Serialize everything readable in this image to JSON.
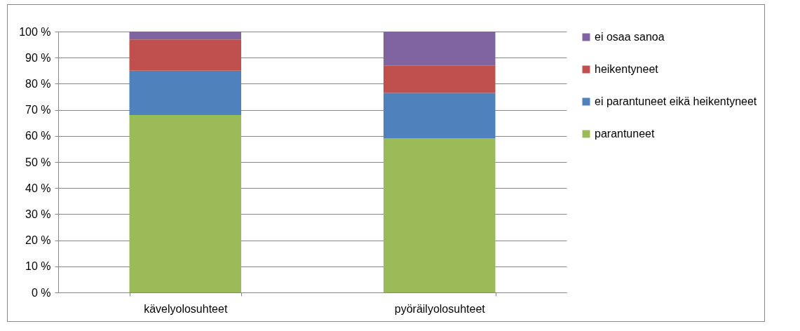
{
  "chart_data": {
    "type": "bar",
    "stacked": true,
    "categories": [
      "kävelyolosuhteet",
      "pyöräilyolosuhteet"
    ],
    "series": [
      {
        "name": "parantuneet",
        "color": "#9bbb59",
        "values": [
          68,
          59
        ]
      },
      {
        "name": "ei parantuneet eikä heikentyneet",
        "color": "#4f81bd",
        "values": [
          17,
          17.5
        ]
      },
      {
        "name": "heikentyneet",
        "color": "#c0504d",
        "values": [
          12,
          10.5
        ]
      },
      {
        "name": "ei osaa sanoa",
        "color": "#8064a2",
        "values": [
          3,
          13
        ]
      }
    ],
    "ylim": [
      0,
      100
    ],
    "yticks": [
      {
        "value": 0,
        "label": "0 %"
      },
      {
        "value": 10,
        "label": "10 %"
      },
      {
        "value": 20,
        "label": "20 %"
      },
      {
        "value": 30,
        "label": "30 %"
      },
      {
        "value": 40,
        "label": "40 %"
      },
      {
        "value": 50,
        "label": "50 %"
      },
      {
        "value": 60,
        "label": "60 %"
      },
      {
        "value": 70,
        "label": "70 %"
      },
      {
        "value": 80,
        "label": "80 %"
      },
      {
        "value": 90,
        "label": "90 %"
      },
      {
        "value": 100,
        "label": "100 %"
      }
    ],
    "grid": "y",
    "legend": "right"
  }
}
